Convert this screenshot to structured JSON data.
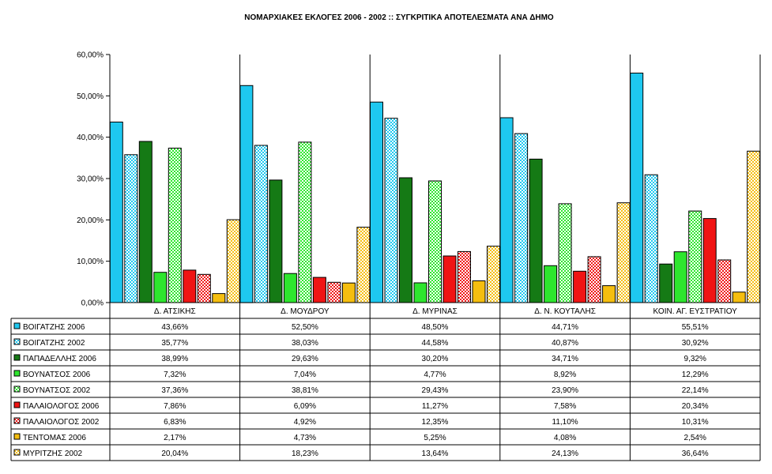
{
  "chart_data": {
    "type": "bar",
    "title": "ΝΟΜΑΡΧΙΑΚΕΣ ΕΚΛΟΓΕΣ 2006 - 2002 :: ΣΥΓΚΡΙΤΙΚΑ ΑΠΟΤΕΛΕΣΜΑΤΑ ΑΝΑ ΔΗΜΟ",
    "ylim": [
      0,
      60
    ],
    "yticks": [
      "0,00%",
      "10,00%",
      "20,00%",
      "30,00%",
      "40,00%",
      "50,00%",
      "60,00%"
    ],
    "grid": false,
    "legend": "data-table",
    "categories": [
      "Δ. ΑΤΣΙΚΗΣ",
      "Δ. ΜΟΥΔΡΟΥ",
      "Δ. ΜΥΡΙΝΑΣ",
      "Δ. Ν. ΚΟΥΤΑΛΗΣ",
      "ΚΟΙΝ. ΑΓ. ΕΥΣΤΡΑΤΙΟΥ"
    ],
    "series": [
      {
        "name": "ΒΟΙΓΑΤΖΗΣ 2006",
        "color": "#1EC8F0",
        "pattern": false,
        "values": [
          43.66,
          52.5,
          48.5,
          44.71,
          55.51
        ],
        "labels": [
          "43,66%",
          "52,50%",
          "48,50%",
          "44,71%",
          "55,51%"
        ]
      },
      {
        "name": "ΒΟΙΓΑΤΖΗΣ 2002",
        "color": "#1EC8F0",
        "pattern": true,
        "values": [
          35.77,
          38.03,
          44.58,
          40.87,
          30.92
        ],
        "labels": [
          "35,77%",
          "38,03%",
          "44,58%",
          "40,87%",
          "30,92%"
        ]
      },
      {
        "name": "ΠΑΠΑΔΕΛΛΗΣ 2006",
        "color": "#157A15",
        "pattern": false,
        "values": [
          38.99,
          29.63,
          30.2,
          34.71,
          9.32
        ],
        "labels": [
          "38,99%",
          "29,63%",
          "30,20%",
          "34,71%",
          "9,32%"
        ]
      },
      {
        "name": "ΒΟΥΝΑΤΣΟΣ 2006",
        "color": "#2EE62E",
        "pattern": false,
        "values": [
          7.32,
          7.04,
          4.77,
          8.92,
          12.29
        ],
        "labels": [
          "7,32%",
          "7,04%",
          "4,77%",
          "8,92%",
          "12,29%"
        ]
      },
      {
        "name": "ΒΟΥΝΑΤΣΟΣ 2002",
        "color": "#2EE62E",
        "pattern": true,
        "values": [
          37.36,
          38.81,
          29.43,
          23.9,
          22.14
        ],
        "labels": [
          "37,36%",
          "38,81%",
          "29,43%",
          "23,90%",
          "22,14%"
        ]
      },
      {
        "name": "ΠΑΛΑΙΟΛΟΓΟΣ 2006",
        "color": "#F01414",
        "pattern": false,
        "values": [
          7.86,
          6.09,
          11.27,
          7.58,
          20.34
        ],
        "labels": [
          "7,86%",
          "6,09%",
          "11,27%",
          "7,58%",
          "20,34%"
        ]
      },
      {
        "name": "ΠΑΛΑΙΟΛΟΓΟΣ 2002",
        "color": "#F01414",
        "pattern": true,
        "values": [
          6.83,
          4.92,
          12.35,
          11.1,
          10.31
        ],
        "labels": [
          "6,83%",
          "4,92%",
          "12,35%",
          "11,10%",
          "10,31%"
        ]
      },
      {
        "name": "ΤΕΝΤΟΜΑΣ 2006",
        "color": "#F5BE0F",
        "pattern": false,
        "values": [
          2.17,
          4.73,
          5.25,
          4.08,
          2.54
        ],
        "labels": [
          "2,17%",
          "4,73%",
          "5,25%",
          "4,08%",
          "2,54%"
        ]
      },
      {
        "name": "ΜΥΡΙΤΖΗΣ 2002",
        "color": "#F5BE0F",
        "pattern": true,
        "values": [
          20.04,
          18.23,
          13.64,
          24.13,
          36.64
        ],
        "labels": [
          "20,04%",
          "18,23%",
          "13,64%",
          "24,13%",
          "36,64%"
        ]
      }
    ]
  }
}
